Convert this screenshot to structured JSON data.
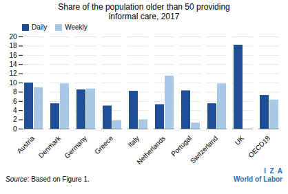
{
  "chart_data": {
    "type": "bar",
    "title": "Share of the population older than 50 providing\ninformal care, 2017",
    "categories": [
      "Austria",
      "Denmark",
      "Germany",
      "Greece",
      "Italy",
      "Netherlands",
      "Portugal",
      "Switzerland",
      "UK",
      "OECD18"
    ],
    "series": [
      {
        "name": "Daily",
        "color": "#1f4e96",
        "values": [
          10.0,
          5.5,
          8.5,
          5.0,
          8.2,
          5.3,
          8.3,
          5.5,
          18.2,
          7.3
        ]
      },
      {
        "name": "Weekly",
        "color": "#a8c8e8",
        "values": [
          9.0,
          9.8,
          8.7,
          1.8,
          2.0,
          11.5,
          1.3,
          9.8,
          0.0,
          6.3
        ]
      }
    ],
    "ylim": [
      0,
      20
    ],
    "yticks": [
      0,
      2,
      4,
      6,
      8,
      10,
      12,
      14,
      16,
      18,
      20
    ],
    "grid": true,
    "legend": "upper left",
    "annotations": [
      "Source: Based on Figure 1.",
      "I  Z  A",
      "World of Labor"
    ]
  }
}
